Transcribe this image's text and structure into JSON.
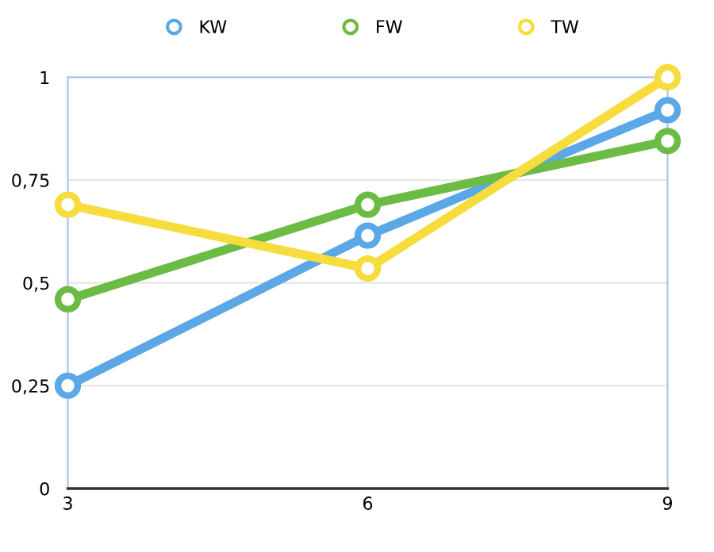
{
  "chart_data": {
    "type": "line",
    "x": [
      3,
      6,
      9
    ],
    "series": [
      {
        "name": "KW",
        "color": "#5aa8e8",
        "values": [
          0.25,
          0.615,
          0.92
        ]
      },
      {
        "name": "FW",
        "color": "#6cbb45",
        "values": [
          0.46,
          0.69,
          0.845
        ]
      },
      {
        "name": "TW",
        "color": "#f6dc3c",
        "values": [
          0.69,
          0.535,
          1.0
        ]
      }
    ],
    "xlim": [
      3,
      9
    ],
    "xticks": [
      3,
      6,
      9
    ],
    "ylim": [
      0,
      1
    ],
    "yticks": [
      0,
      {
        "value": 0.25,
        "label": "0,25"
      },
      {
        "value": 0.5,
        "label": "0,5"
      },
      {
        "value": 0.75,
        "label": "0,75"
      },
      1
    ],
    "grid": "y",
    "legend": "top",
    "marker": "circle",
    "line_style": "solid"
  }
}
